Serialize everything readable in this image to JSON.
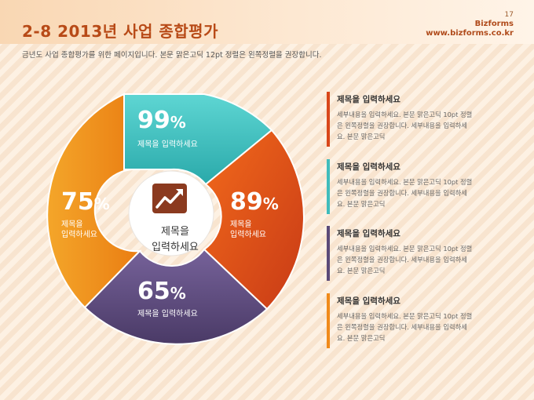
{
  "header": {
    "title": "2-8 2013년 사업 종합평가",
    "page_number": "17",
    "brand_name": "Bizforms",
    "brand_url": "www.bizforms.co.kr"
  },
  "subtitle": "금년도 사업 종합평가를 위한 페이지입니다. 본문 맑은고딕 12pt 정렬은 왼쪽정렬을 권장합니다.",
  "chart": {
    "center_label_line1": "제목을",
    "center_label_line2": "입력하세요",
    "center_icon": "trend-up-icon",
    "segments": [
      {
        "pct": "99",
        "unit": "%",
        "label_line1": "제목을 입력하세요",
        "label_line2": "",
        "color": "#3fc1c0"
      },
      {
        "pct": "89",
        "unit": "%",
        "label_line1": "제목을",
        "label_line2": "입력하세요",
        "color": "#e24b1b"
      },
      {
        "pct": "65",
        "unit": "%",
        "label_line1": "제목을 입력하세요",
        "label_line2": "",
        "color": "#5e4b7d"
      },
      {
        "pct": "75",
        "unit": "%",
        "label_line1": "제목을",
        "label_line2": "입력하세요",
        "color": "#f08a1a"
      }
    ]
  },
  "info_items": [
    {
      "title": "제목을 입력하세요",
      "line1": "세부내용을 입력하세요. 본문 맑은고딕 10pt 정렬",
      "line2": "은 왼쪽정렬을 권장합니다. 세부내용을 입력하세",
      "line3": "요. 본문 맑은고딕",
      "color": "#d9471a"
    },
    {
      "title": "제목을 입력하세요",
      "line1": "세부내용을 입력하세요. 본문 맑은고딕 10pt 정렬",
      "line2": "은 왼쪽정렬을 권장합니다. 세부내용을 입력하세",
      "line3": "요. 본문 맑은고딕",
      "color": "#3fbcbc"
    },
    {
      "title": "제목을 입력하세요",
      "line1": "세부내용을 입력하세요. 본문 맑은고딕 10pt 정렬",
      "line2": "은 왼쪽정렬을 권장합니다. 세부내용을 입력하세",
      "line3": "요. 본문 맑은고딕",
      "color": "#5b4a78"
    },
    {
      "title": "제목을 입력하세요",
      "line1": "세부내용을 입력하세요. 본문 맑은고딕 10pt 정렬",
      "line2": "은 왼쪽정렬을 권장합니다. 세부내용을 입력하세",
      "line3": "요. 본문 맑은고딕",
      "color": "#f08a1a"
    }
  ]
}
